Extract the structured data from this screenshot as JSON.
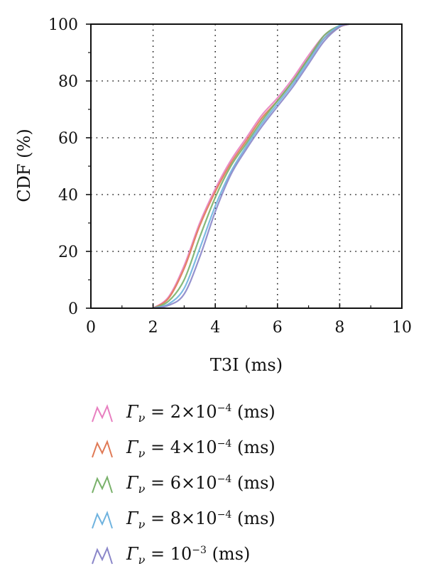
{
  "chart_data": {
    "type": "line",
    "xlabel": "T3I (ms)",
    "ylabel": "CDF (%)",
    "xlim": [
      0,
      10
    ],
    "ylim": [
      0,
      100
    ],
    "xticks": [
      0,
      2,
      4,
      6,
      8,
      10
    ],
    "yticks": [
      0,
      20,
      40,
      60,
      80,
      100
    ],
    "grid": "dotted",
    "legend_position": "below",
    "series": [
      {
        "name": "Γv = 2×10−4 (ms)",
        "color": "#e87fc0",
        "x": [
          2.0,
          2.5,
          3.0,
          3.5,
          4.0,
          4.5,
          5.0,
          5.5,
          6.0,
          6.5,
          7.0,
          7.5,
          8.0,
          8.3
        ],
        "y": [
          0,
          4,
          15,
          30,
          42,
          52,
          60,
          68,
          74,
          81,
          89,
          96,
          99.5,
          100
        ]
      },
      {
        "name": "Γv = 4×10−4 (ms)",
        "color": "#e07a56",
        "x": [
          2.0,
          2.5,
          3.0,
          3.5,
          4.0,
          4.5,
          5.0,
          5.5,
          6.0,
          6.5,
          7.0,
          7.5,
          8.0,
          8.3
        ],
        "y": [
          0,
          3.5,
          14,
          29,
          41,
          51,
          59,
          67,
          73,
          80,
          88,
          95,
          99,
          100
        ]
      },
      {
        "name": "Γv = 6×10−4 (ms)",
        "color": "#79b16a",
        "x": [
          2.0,
          2.5,
          3.0,
          3.5,
          4.0,
          4.5,
          5.0,
          5.5,
          6.0,
          6.5,
          7.0,
          7.5,
          8.0,
          8.3
        ],
        "y": [
          0,
          2.5,
          10,
          25,
          39,
          50,
          58,
          66,
          73,
          80,
          88,
          96,
          99.5,
          100
        ]
      },
      {
        "name": "Γv = 8×10−4 (ms)",
        "color": "#6fb3df",
        "x": [
          2.0,
          2.5,
          3.0,
          3.5,
          4.0,
          4.5,
          5.0,
          5.5,
          6.0,
          6.5,
          7.0,
          7.5,
          8.0,
          8.3
        ],
        "y": [
          0,
          1.5,
          7,
          21,
          36,
          48,
          57,
          65,
          72,
          79,
          87,
          95,
          99.5,
          100
        ]
      },
      {
        "name": "Γv = 10−3 (ms)",
        "color": "#8a86c9",
        "x": [
          2.0,
          2.5,
          3.0,
          3.5,
          4.0,
          4.5,
          5.0,
          5.5,
          6.0,
          6.5,
          7.0,
          7.5,
          8.0,
          8.3
        ],
        "y": [
          0,
          1,
          5,
          18,
          34,
          47,
          56,
          64,
          71,
          78,
          86,
          94,
          99,
          100
        ]
      }
    ]
  },
  "legend": [
    {
      "symbol": "Γ",
      "sub": "ν",
      "coef": " = 2×10",
      "exp": "−4",
      "unit": " (ms)"
    },
    {
      "symbol": "Γ",
      "sub": "ν",
      "coef": " = 4×10",
      "exp": "−4",
      "unit": " (ms)"
    },
    {
      "symbol": "Γ",
      "sub": "ν",
      "coef": " = 6×10",
      "exp": "−4",
      "unit": " (ms)"
    },
    {
      "symbol": "Γ",
      "sub": "ν",
      "coef": " = 8×10",
      "exp": "−4",
      "unit": " (ms)"
    },
    {
      "symbol": "Γ",
      "sub": "ν",
      "coef": " = 10",
      "exp": "−3",
      "unit": " (ms)"
    }
  ]
}
